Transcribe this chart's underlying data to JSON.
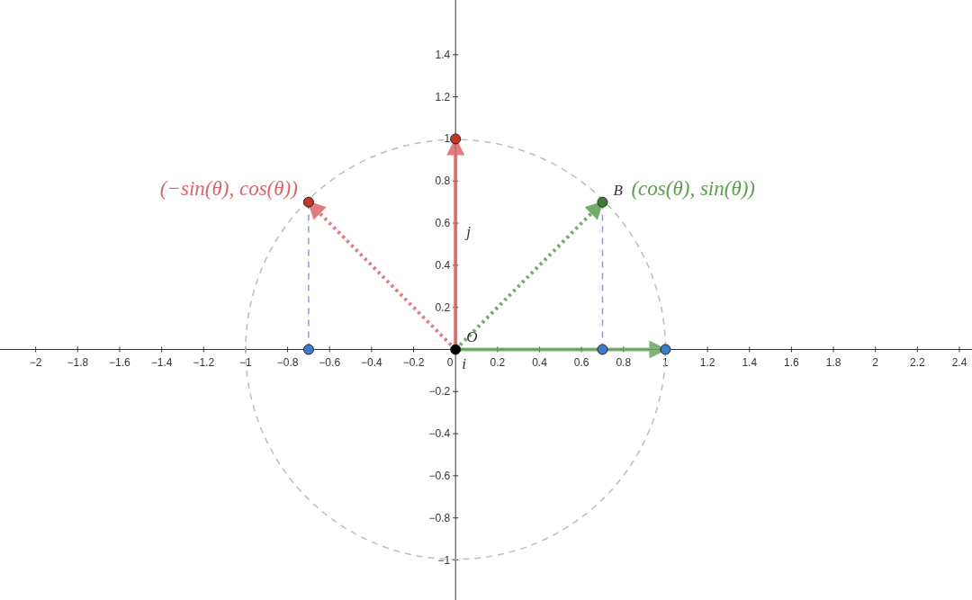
{
  "chart_data": {
    "type": "line",
    "xlim": [
      -2.17,
      2.46
    ],
    "ylim": [
      -1.19,
      1.66
    ],
    "xticks": [
      -2,
      -1.8,
      -1.6,
      -1.4,
      -1.2,
      -1,
      -0.8,
      -0.6,
      -0.4,
      -0.2,
      0,
      0.2,
      0.4,
      0.6,
      0.8,
      1,
      1.2,
      1.4,
      1.6,
      1.8,
      2,
      2.2,
      2.4
    ],
    "yticks": [
      -1,
      -0.8,
      -0.6,
      -0.4,
      -0.2,
      0.2,
      0.4,
      0.6,
      0.8,
      1,
      1.2,
      1.4
    ],
    "grid": false,
    "legend": false,
    "series": [
      {
        "color": "#9d8fe0",
        "line_style": "dashed",
        "x": [
          0.7,
          0.7
        ],
        "values": [
          0,
          0.7
        ]
      },
      {
        "color": "#9d8fe0",
        "line_style": "dashed",
        "x": [
          -0.7,
          -0.7
        ],
        "values": [
          0,
          0.7
        ]
      },
      {
        "color": "#d9666b",
        "line_style": "solid",
        "x": [
          0,
          0
        ],
        "values": [
          0,
          1
        ]
      },
      {
        "color": "#6aa85e",
        "line_style": "solid",
        "x": [
          0,
          1
        ],
        "values": [
          0,
          0
        ]
      },
      {
        "name": "(cos(θ), sin(θ))",
        "color": "#5e9e52",
        "line_style": "dotted",
        "x": [
          0,
          0.7
        ],
        "values": [
          0,
          0.7
        ]
      },
      {
        "name": "(−sin(θ), cos(θ))",
        "color": "#d9666b",
        "line_style": "dotted",
        "x": [
          0,
          -0.7
        ],
        "values": [
          0,
          0.7
        ]
      },
      {
        "type": "scatter",
        "marker": "circle",
        "x": [
          0,
          0.7,
          -0.7,
          -0.7,
          0.7,
          1,
          0
        ],
        "values": [
          1,
          0.7,
          0.7,
          0,
          0,
          0,
          0
        ],
        "colors": [
          "#c0392b",
          "#3f7a36",
          "#c0392b",
          "#3d7cc9",
          "#3d7cc9",
          "#3d7cc9",
          "#000000"
        ]
      }
    ],
    "annotations": [
      {
        "text": "O",
        "x": 0,
        "y": 0
      },
      {
        "text": "B",
        "x": 0.7,
        "y": 0.7
      },
      {
        "text": "j",
        "x": 0,
        "y": 0.5
      },
      {
        "text": "i",
        "x": 0.03,
        "y": 0
      }
    ]
  }
}
